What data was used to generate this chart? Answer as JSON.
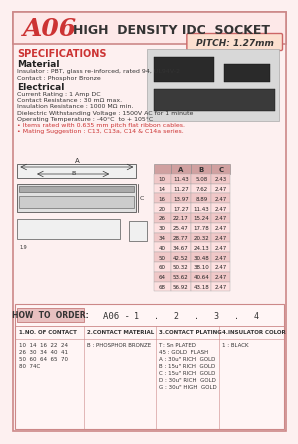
{
  "title_code": "A06",
  "title_text": "HIGH  DENSITY IDC  SOCKET",
  "pitch_text": "PITCH: 1.27mm",
  "bg_color": "#fdf0f0",
  "border_color": "#cc8888",
  "specs_title": "SPECIFICATIONS",
  "material_title": "Material",
  "material_lines": [
    "Insulator : PBT, glass re-inforced, rated 94, UL94V-2",
    "Contact : Phosphor Bronze"
  ],
  "electrical_title": "Electrical",
  "electrical_lines": [
    "Current Rating : 1 Amp DC",
    "Contact Resistance : 30 mΩ max.",
    "Insulation Resistance : 1000 MΩ min.",
    "Dielectric Withstanding Voltage : 1500V AC for 1 minute",
    "Operating Temperature : -40°C  to + 105°C",
    "• Items rated with 0.635 mm pitch flat ribbon cables.",
    "• Mating Suggestion : C13, C13a, C14 & C14a series."
  ],
  "table_headers": [
    "",
    "A",
    "B",
    "C"
  ],
  "table_data": [
    [
      "10",
      "11.43",
      "5.08",
      "2.43"
    ],
    [
      "14",
      "11.27",
      "7.62",
      "2.47"
    ],
    [
      "16",
      "13.97",
      "8.89",
      "2.47"
    ],
    [
      "20",
      "17.27",
      "11.43",
      "2.47"
    ],
    [
      "26",
      "22.17",
      "15.24",
      "2.47"
    ],
    [
      "30",
      "25.47",
      "17.78",
      "2.47"
    ],
    [
      "34",
      "28.77",
      "20.32",
      "2.47"
    ],
    [
      "40",
      "34.67",
      "24.13",
      "2.47"
    ],
    [
      "50",
      "42.52",
      "30.48",
      "2.47"
    ],
    [
      "60",
      "50.32",
      "38.10",
      "2.47"
    ],
    [
      "64",
      "53.62",
      "40.64",
      "2.47"
    ],
    [
      "68",
      "56.92",
      "43.18",
      "2.47"
    ]
  ],
  "how_to_order_title": "HOW  TO  ORDER:",
  "order_example": "A06 -",
  "order_nums": "1   .   2   .   3   .   4",
  "order_cols": [
    "1.NO. OF CONTACT",
    "2.CONTACT MATERIAL",
    "3.CONTACT PLATING",
    "4.INSULATOR COLOR"
  ],
  "order_col1": [
    "10  14  16  22  24",
    "26  30  34  40  41",
    "50  60  64  65  70",
    "80  74C"
  ],
  "order_col2": [
    "B : PHOSPHOR BRONZE"
  ],
  "order_col3": [
    "T : Sn PLATED",
    "45 : GOLD  FLASH",
    "A : 30u\" RICH  GOLD",
    "B : 15u\" RICH  GOLD",
    "C : 15u\" RICH  GOLD",
    "D : 30u\" RICH  GOLD",
    "G : 30u\" HIGH  GOLD"
  ],
  "order_col4": [
    "1 : BLACK"
  ]
}
